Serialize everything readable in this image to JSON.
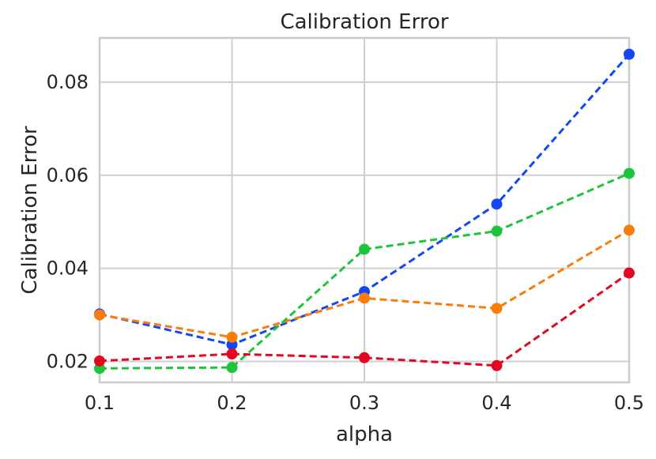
{
  "chart_data": {
    "type": "line",
    "title": "Calibration Error",
    "xlabel": "alpha",
    "ylabel": "Calibration Error",
    "x": [
      0.1,
      0.2,
      0.3,
      0.4,
      0.5
    ],
    "x_ticks": [
      "0.1",
      "0.2",
      "0.3",
      "0.4",
      "0.5"
    ],
    "y_ticks": [
      "0.02",
      "0.04",
      "0.06",
      "0.08"
    ],
    "xlim": [
      0.1,
      0.5
    ],
    "ylim": [
      0.0155,
      0.0895
    ],
    "grid": true,
    "line_style": "dashed",
    "marker": "circle",
    "series": [
      {
        "color": "#1147f5",
        "values": [
          0.0302,
          0.0236,
          0.035,
          0.0538,
          0.086
        ]
      },
      {
        "color": "#f97d0d",
        "values": [
          0.03,
          0.0252,
          0.0336,
          0.0314,
          0.0482
        ]
      },
      {
        "color": "#1fc43d",
        "values": [
          0.0185,
          0.0187,
          0.0441,
          0.048,
          0.0604
        ]
      },
      {
        "color": "#e3081f",
        "values": [
          0.0201,
          0.0216,
          0.0208,
          0.0191,
          0.039
        ]
      }
    ]
  }
}
